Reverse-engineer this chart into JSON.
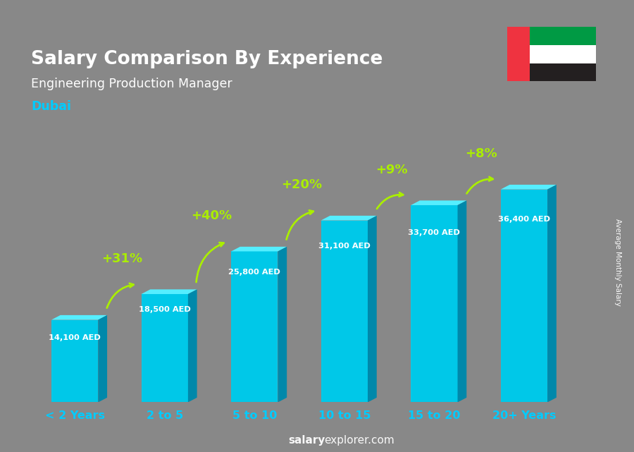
{
  "title": "Salary Comparison By Experience",
  "subtitle": "Engineering Production Manager",
  "city": "Dubai",
  "ylabel": "Average Monthly Salary",
  "watermark_bold": "salary",
  "watermark_normal": "explorer.com",
  "categories": [
    "< 2 Years",
    "2 to 5",
    "5 to 10",
    "10 to 15",
    "15 to 20",
    "20+ Years"
  ],
  "values": [
    14100,
    18500,
    25800,
    31100,
    33700,
    36400
  ],
  "bar_color_face": "#00c8e8",
  "bar_color_top": "#55eeff",
  "bar_color_right": "#0088aa",
  "pct_labels": [
    "+31%",
    "+40%",
    "+20%",
    "+9%",
    "+8%"
  ],
  "pct_color": "#aaee00",
  "value_labels": [
    "14,100 AED",
    "18,500 AED",
    "25,800 AED",
    "31,100 AED",
    "33,700 AED",
    "36,400 AED"
  ],
  "title_color": "#ffffff",
  "subtitle_color": "#ffffff",
  "city_color": "#00ccff",
  "xticklabel_color": "#00ccff",
  "bg_color": "#888888",
  "figsize": [
    9.0,
    6.41
  ],
  "dpi": 100
}
